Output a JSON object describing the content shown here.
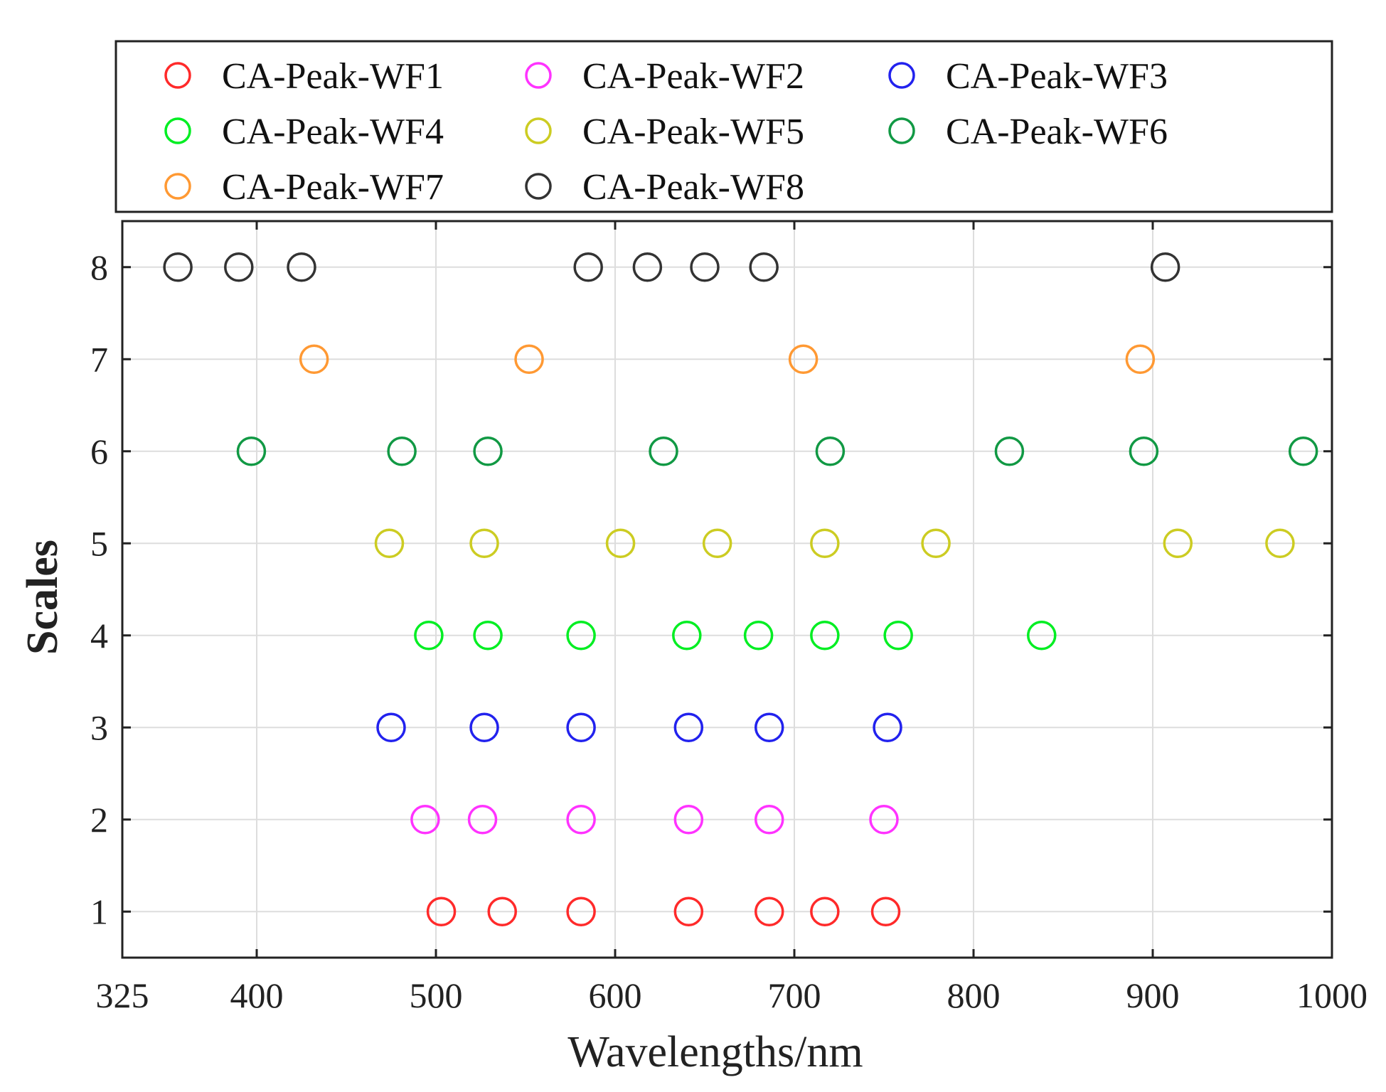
{
  "chart_data": {
    "type": "scatter",
    "xlabel": "Wavelengths/nm",
    "ylabel": "Scales",
    "xlim": [
      325,
      1000
    ],
    "ylim": [
      0.5,
      8.5
    ],
    "xticks": [
      325,
      400,
      500,
      600,
      700,
      800,
      900,
      1000
    ],
    "yticks": [
      1,
      2,
      3,
      4,
      5,
      6,
      7,
      8
    ],
    "grid": true,
    "legend_position": "top",
    "marker": "open-circle",
    "series": [
      {
        "name": "CA-Peak-WF1",
        "color": "#ff2a2a",
        "y": 1,
        "x": [
          503,
          537,
          581,
          641,
          686,
          717,
          751
        ]
      },
      {
        "name": "CA-Peak-WF2",
        "color": "#ff33ff",
        "y": 2,
        "x": [
          494,
          526,
          581,
          641,
          686,
          750
        ]
      },
      {
        "name": "CA-Peak-WF3",
        "color": "#2222ee",
        "y": 3,
        "x": [
          475,
          527,
          581,
          641,
          686,
          752
        ]
      },
      {
        "name": "CA-Peak-WF4",
        "color": "#00ee22",
        "y": 4,
        "x": [
          496,
          529,
          581,
          640,
          680,
          717,
          758,
          838
        ]
      },
      {
        "name": "CA-Peak-WF5",
        "color": "#cccc22",
        "y": 5,
        "x": [
          474,
          527,
          603,
          657,
          717,
          779,
          914,
          971
        ]
      },
      {
        "name": "CA-Peak-WF6",
        "color": "#119944",
        "y": 6,
        "x": [
          397,
          481,
          529,
          627,
          720,
          820,
          895,
          984
        ]
      },
      {
        "name": "CA-Peak-WF7",
        "color": "#ff9933",
        "y": 7,
        "x": [
          432,
          552,
          705,
          893
        ]
      },
      {
        "name": "CA-Peak-WF8",
        "color": "#333333",
        "y": 8,
        "x": [
          356,
          390,
          425,
          585,
          618,
          650,
          683,
          907
        ]
      }
    ]
  }
}
